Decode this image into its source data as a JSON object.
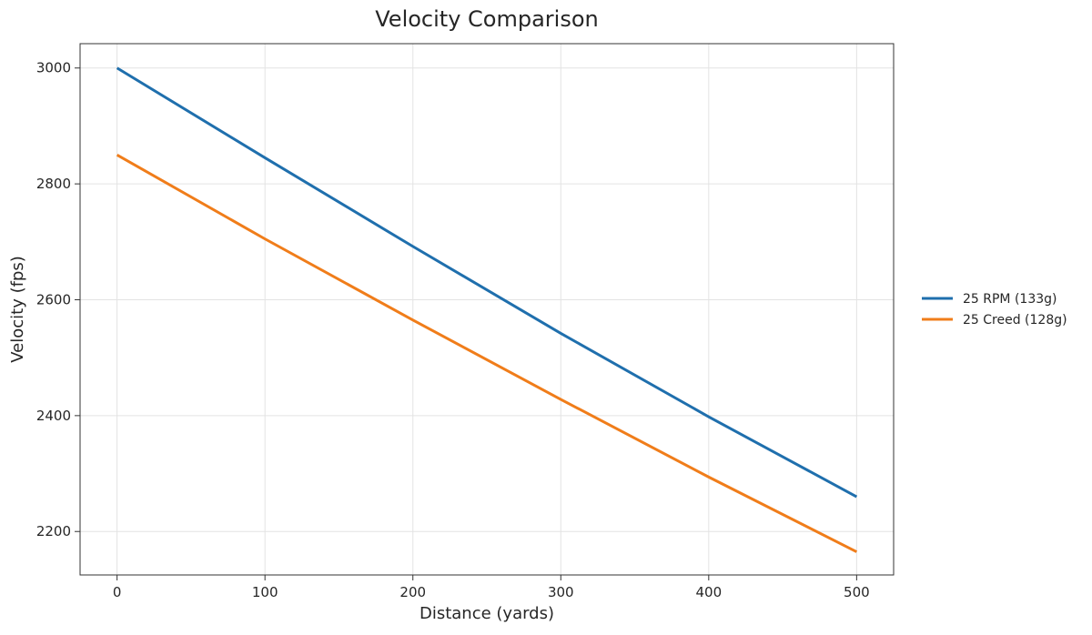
{
  "chart_data": {
    "type": "line",
    "title": "Velocity Comparison",
    "xlabel": "Distance (yards)",
    "ylabel": "Velocity (fps)",
    "xlim": [
      -25,
      525
    ],
    "ylim": [
      2125,
      3042
    ],
    "x_ticks": [
      0,
      100,
      200,
      300,
      400,
      500
    ],
    "y_ticks": [
      2200,
      2400,
      2600,
      2800,
      3000
    ],
    "grid": true,
    "legend_position": "outside-right",
    "series": [
      {
        "name": "25 RPM (133g)",
        "color": "#1f6fad",
        "x": [
          0,
          100,
          200,
          300,
          400,
          500
        ],
        "y": [
          3000,
          2845,
          2692,
          2542,
          2398,
          2260
        ]
      },
      {
        "name": "25 Creed (128g)",
        "color": "#f07d1a",
        "x": [
          0,
          100,
          200,
          300,
          400,
          500
        ],
        "y": [
          2850,
          2705,
          2565,
          2428,
          2294,
          2165
        ]
      }
    ]
  }
}
